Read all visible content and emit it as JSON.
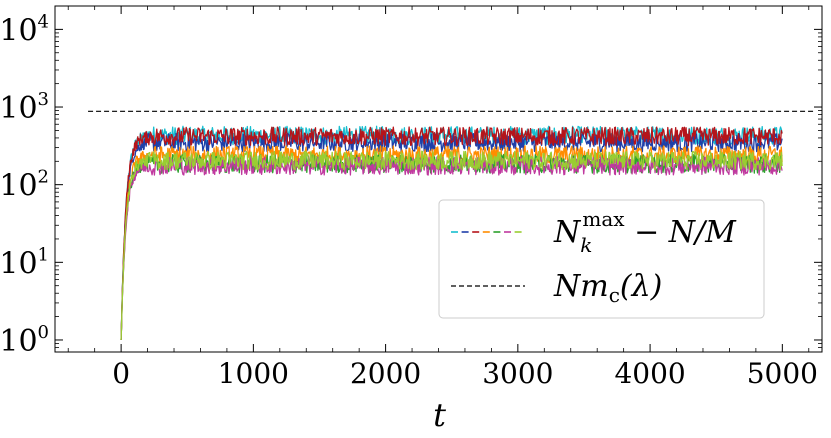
{
  "chart_data": {
    "type": "line",
    "xlabel": "t",
    "ylabel": "",
    "x_range": [
      -500,
      5300
    ],
    "y_range": [
      0.7,
      20000
    ],
    "y_scale": "log",
    "x_ticks": [
      0,
      1000,
      2000,
      3000,
      4000,
      5000
    ],
    "x_tick_labels": [
      "0",
      "1000",
      "2000",
      "3000",
      "4000",
      "5000"
    ],
    "y_ticks": [
      1,
      10,
      100,
      1000,
      10000
    ],
    "y_tick_labels": [
      {
        "base": "10",
        "exp": "0"
      },
      {
        "base": "10",
        "exp": "1"
      },
      {
        "base": "10",
        "exp": "2"
      },
      {
        "base": "10",
        "exp": "3"
      },
      {
        "base": "10",
        "exp": "4"
      }
    ],
    "legend": {
      "position": "lower-right",
      "entries": [
        {
          "label_main": "N",
          "label_sub": "k",
          "label_sup": "max",
          "label_rest": " − N/M",
          "style": "multicolor-dashed"
        },
        {
          "label_main": "Nm",
          "label_sub": "c",
          "label_rest": "(λ)",
          "style": "black-dashed"
        }
      ]
    },
    "series": [
      {
        "color": "#17becf",
        "plateau": 430,
        "t_end": 5000
      },
      {
        "color": "#1f3fa8",
        "plateau": 350,
        "t_end": 5000
      },
      {
        "color": "#b5141a",
        "plateau": 420,
        "t_end": 5000
      },
      {
        "color": "#ff8c00",
        "plateau": 240,
        "t_end": 5000
      },
      {
        "color": "#2ca02c",
        "plateau": 185,
        "t_end": 5000
      },
      {
        "color": "#c0399f",
        "plateau": 175,
        "t_end": 5000
      },
      {
        "color": "#9acd32",
        "plateau": 205,
        "t_end": 5000
      }
    ],
    "series_start_value": 1,
    "reference_line": {
      "value": 880,
      "x_range": [
        -250,
        5250
      ],
      "color": "#000000",
      "style": "dashed"
    }
  }
}
